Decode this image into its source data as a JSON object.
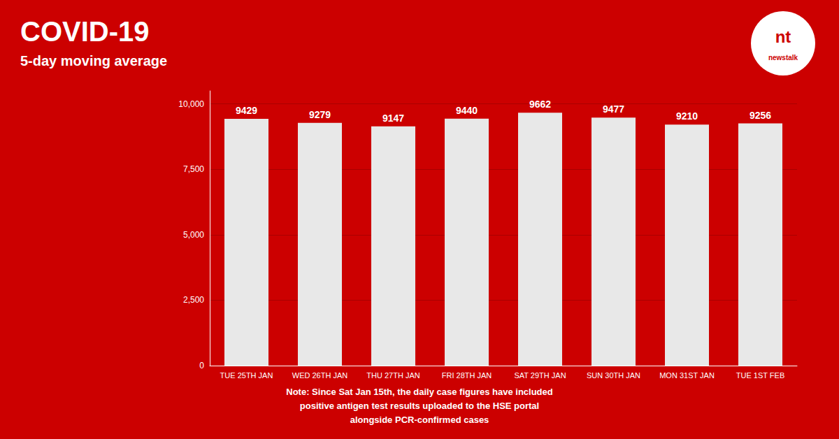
{
  "chart_data": {
    "type": "bar",
    "title": "COVID-19",
    "subtitle": "5-day moving average",
    "categories": [
      "TUE 25TH JAN",
      "WED 26TH JAN",
      "THU 27TH JAN",
      "FRI 28TH JAN",
      "SAT 29TH JAN",
      "SUN 30TH JAN",
      "MON 31ST JAN",
      "TUE 1ST FEB"
    ],
    "values": [
      9429,
      9279,
      9147,
      9440,
      9662,
      9477,
      9210,
      9256
    ],
    "color": "#e8e8e8",
    "ylim": [
      0,
      10500
    ],
    "yticks": [
      0,
      {
        "value": 2500,
        "label": "2,500"
      },
      {
        "value": 5000,
        "label": "5,000"
      },
      {
        "value": 7500,
        "label": "7,500"
      },
      {
        "value": 10000,
        "label": "10,000"
      }
    ],
    "grid": true,
    "data_labels": true,
    "annotations": [
      "Note: Since Sat Jan 15th, the daily case figures have included\npositive antigen test results uploaded to the HSE portal\nalongside PCR-confirmed cases",
      "nt",
      "newstalk"
    ]
  }
}
